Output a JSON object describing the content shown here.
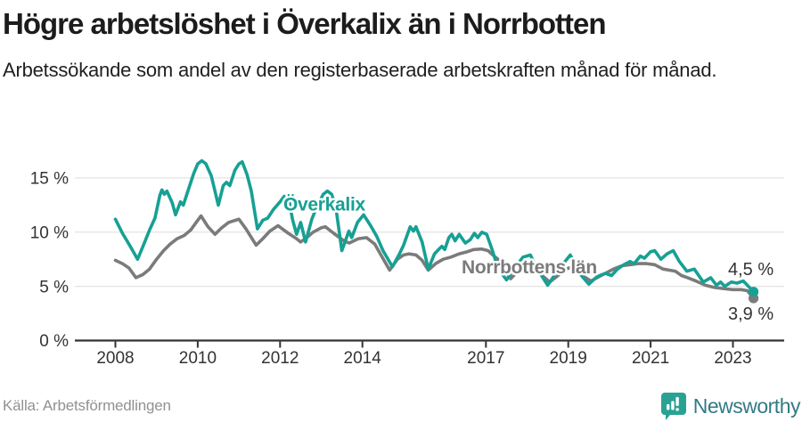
{
  "header": {
    "title": "Högre arbetslöshet i Överkalix än i Norrbotten",
    "subtitle": "Arbetssökande som andel av den registerbaserade arbetskraften månad för månad."
  },
  "chart_data": {
    "type": "line",
    "title": "",
    "xlabel": "",
    "ylabel": "%",
    "x_axis": {
      "range": [
        2007.05,
        2024.25
      ],
      "ticks": [
        2008,
        2010,
        2012,
        2014,
        2017,
        2019,
        2021,
        2023
      ],
      "labels": [
        "2008",
        "2010",
        "2012",
        "2014",
        "2017",
        "2019",
        "2021",
        "2023"
      ]
    },
    "y_axis": {
      "range": [
        0,
        18.3
      ],
      "ticks": [
        0,
        5,
        10,
        15
      ],
      "labels": [
        "0 %",
        "5 %",
        "10 %",
        "15 %"
      ]
    },
    "grid": "horizontal",
    "legend": "inline-labels",
    "series": [
      {
        "name": "Överkalix",
        "color": "#17a094",
        "end_value": 4.5,
        "end_label": "4,5 %",
        "points": [
          [
            2008.0,
            11.2
          ],
          [
            2008.17,
            9.9
          ],
          [
            2008.33,
            8.9
          ],
          [
            2008.42,
            8.3
          ],
          [
            2008.54,
            7.5
          ],
          [
            2008.67,
            8.7
          ],
          [
            2008.83,
            10.2
          ],
          [
            2008.96,
            11.3
          ],
          [
            2009.08,
            13.4
          ],
          [
            2009.13,
            13.9
          ],
          [
            2009.19,
            13.5
          ],
          [
            2009.25,
            13.8
          ],
          [
            2009.38,
            12.7
          ],
          [
            2009.46,
            11.6
          ],
          [
            2009.58,
            12.8
          ],
          [
            2009.65,
            12.5
          ],
          [
            2009.78,
            14.0
          ],
          [
            2009.9,
            15.4
          ],
          [
            2010.0,
            16.3
          ],
          [
            2010.1,
            16.6
          ],
          [
            2010.2,
            16.3
          ],
          [
            2010.33,
            15.2
          ],
          [
            2010.5,
            12.5
          ],
          [
            2010.62,
            14.3
          ],
          [
            2010.7,
            14.6
          ],
          [
            2010.78,
            14.3
          ],
          [
            2010.9,
            15.7
          ],
          [
            2011.0,
            16.3
          ],
          [
            2011.08,
            16.5
          ],
          [
            2011.2,
            15.3
          ],
          [
            2011.3,
            13.8
          ],
          [
            2011.45,
            10.3
          ],
          [
            2011.58,
            11.1
          ],
          [
            2011.7,
            11.3
          ],
          [
            2011.84,
            12.1
          ],
          [
            2012.0,
            12.8
          ],
          [
            2012.1,
            13.3
          ],
          [
            2012.2,
            13.3
          ],
          [
            2012.3,
            11.2
          ],
          [
            2012.4,
            9.8
          ],
          [
            2012.5,
            10.9
          ],
          [
            2012.62,
            9.1
          ],
          [
            2012.77,
            11.2
          ],
          [
            2012.9,
            12.4
          ],
          [
            2013.05,
            13.5
          ],
          [
            2013.15,
            13.8
          ],
          [
            2013.25,
            13.5
          ],
          [
            2013.35,
            12.4
          ],
          [
            2013.5,
            8.3
          ],
          [
            2013.67,
            10.1
          ],
          [
            2013.74,
            9.5
          ],
          [
            2013.88,
            10.9
          ],
          [
            2014.03,
            11.6
          ],
          [
            2014.2,
            10.6
          ],
          [
            2014.35,
            9.6
          ],
          [
            2014.5,
            8.3
          ],
          [
            2014.73,
            6.8
          ],
          [
            2014.9,
            8.0
          ],
          [
            2015.0,
            8.8
          ],
          [
            2015.16,
            10.5
          ],
          [
            2015.24,
            10.1
          ],
          [
            2015.3,
            10.5
          ],
          [
            2015.45,
            9.1
          ],
          [
            2015.6,
            6.6
          ],
          [
            2015.75,
            8.0
          ],
          [
            2015.85,
            8.4
          ],
          [
            2015.93,
            8.7
          ],
          [
            2016.0,
            8.4
          ],
          [
            2016.1,
            9.5
          ],
          [
            2016.17,
            9.8
          ],
          [
            2016.25,
            9.2
          ],
          [
            2016.35,
            9.8
          ],
          [
            2016.5,
            9.0
          ],
          [
            2016.62,
            9.3
          ],
          [
            2016.72,
            9.9
          ],
          [
            2016.8,
            9.5
          ],
          [
            2016.9,
            10.0
          ],
          [
            2017.02,
            9.8
          ],
          [
            2017.15,
            8.4
          ],
          [
            2017.3,
            6.6
          ],
          [
            2017.5,
            5.6
          ],
          [
            2017.7,
            6.7
          ],
          [
            2017.9,
            7.7
          ],
          [
            2018.08,
            7.9
          ],
          [
            2018.25,
            6.6
          ],
          [
            2018.5,
            5.1
          ],
          [
            2018.7,
            6.2
          ],
          [
            2018.9,
            7.2
          ],
          [
            2019.05,
            7.9
          ],
          [
            2019.25,
            6.3
          ],
          [
            2019.5,
            5.2
          ],
          [
            2019.7,
            5.9
          ],
          [
            2019.9,
            6.2
          ],
          [
            2020.05,
            6.0
          ],
          [
            2020.2,
            6.6
          ],
          [
            2020.35,
            7.0
          ],
          [
            2020.5,
            7.3
          ],
          [
            2020.6,
            7.1
          ],
          [
            2020.75,
            7.8
          ],
          [
            2020.85,
            7.6
          ],
          [
            2021.0,
            8.2
          ],
          [
            2021.1,
            8.3
          ],
          [
            2021.25,
            7.5
          ],
          [
            2021.4,
            8.0
          ],
          [
            2021.55,
            8.3
          ],
          [
            2021.7,
            7.3
          ],
          [
            2021.88,
            6.4
          ],
          [
            2022.06,
            6.6
          ],
          [
            2022.28,
            5.4
          ],
          [
            2022.46,
            5.8
          ],
          [
            2022.6,
            5.1
          ],
          [
            2022.7,
            5.4
          ],
          [
            2022.8,
            5.0
          ],
          [
            2022.96,
            5.4
          ],
          [
            2023.1,
            5.3
          ],
          [
            2023.25,
            5.5
          ],
          [
            2023.35,
            5.1
          ],
          [
            2023.5,
            4.5
          ]
        ]
      },
      {
        "name": "Norrbottens län",
        "color": "#7b7b7b",
        "end_value": 3.9,
        "end_label": "3,9 %",
        "points": [
          [
            2008.0,
            7.4
          ],
          [
            2008.17,
            7.1
          ],
          [
            2008.33,
            6.7
          ],
          [
            2008.5,
            5.8
          ],
          [
            2008.67,
            6.1
          ],
          [
            2008.83,
            6.6
          ],
          [
            2009.0,
            7.5
          ],
          [
            2009.17,
            8.3
          ],
          [
            2009.33,
            8.9
          ],
          [
            2009.5,
            9.4
          ],
          [
            2009.67,
            9.7
          ],
          [
            2009.83,
            10.2
          ],
          [
            2010.0,
            11.1
          ],
          [
            2010.08,
            11.5
          ],
          [
            2010.25,
            10.5
          ],
          [
            2010.42,
            9.8
          ],
          [
            2010.58,
            10.4
          ],
          [
            2010.75,
            10.9
          ],
          [
            2010.92,
            11.1
          ],
          [
            2011.0,
            11.2
          ],
          [
            2011.17,
            10.3
          ],
          [
            2011.42,
            8.8
          ],
          [
            2011.58,
            9.4
          ],
          [
            2011.75,
            10.1
          ],
          [
            2011.95,
            10.6
          ],
          [
            2012.2,
            9.9
          ],
          [
            2012.4,
            9.4
          ],
          [
            2012.5,
            9.1
          ],
          [
            2012.65,
            9.5
          ],
          [
            2012.8,
            10.0
          ],
          [
            2013.0,
            10.4
          ],
          [
            2013.1,
            10.5
          ],
          [
            2013.3,
            9.9
          ],
          [
            2013.55,
            9.2
          ],
          [
            2013.68,
            9.0
          ],
          [
            2013.9,
            9.4
          ],
          [
            2014.1,
            9.5
          ],
          [
            2014.3,
            8.9
          ],
          [
            2014.45,
            7.9
          ],
          [
            2014.66,
            6.5
          ],
          [
            2014.85,
            7.5
          ],
          [
            2015.0,
            7.9
          ],
          [
            2015.13,
            8.0
          ],
          [
            2015.3,
            7.9
          ],
          [
            2015.45,
            7.4
          ],
          [
            2015.6,
            6.5
          ],
          [
            2015.78,
            7.1
          ],
          [
            2015.96,
            7.5
          ],
          [
            2016.15,
            7.7
          ],
          [
            2016.35,
            8.0
          ],
          [
            2016.55,
            8.2
          ],
          [
            2016.7,
            8.4
          ],
          [
            2016.9,
            8.45
          ],
          [
            2017.05,
            8.3
          ],
          [
            2017.2,
            7.8
          ],
          [
            2017.36,
            7.3
          ],
          [
            2017.5,
            6.3
          ],
          [
            2017.6,
            5.7
          ],
          [
            2017.75,
            6.3
          ],
          [
            2017.95,
            6.8
          ],
          [
            2018.1,
            6.9
          ],
          [
            2018.3,
            6.2
          ],
          [
            2018.55,
            5.4
          ],
          [
            2018.75,
            6.0
          ],
          [
            2018.95,
            6.6
          ],
          [
            2019.1,
            6.8
          ],
          [
            2019.3,
            6.1
          ],
          [
            2019.55,
            5.5
          ],
          [
            2019.75,
            5.9
          ],
          [
            2019.95,
            6.3
          ],
          [
            2020.1,
            6.6
          ],
          [
            2020.3,
            6.9
          ],
          [
            2020.5,
            7.0
          ],
          [
            2020.7,
            7.1
          ],
          [
            2020.9,
            7.1
          ],
          [
            2021.1,
            7.0
          ],
          [
            2021.3,
            6.6
          ],
          [
            2021.45,
            6.5
          ],
          [
            2021.6,
            6.4
          ],
          [
            2021.75,
            6.0
          ],
          [
            2021.9,
            5.8
          ],
          [
            2022.1,
            5.5
          ],
          [
            2022.33,
            5.1
          ],
          [
            2022.55,
            4.9
          ],
          [
            2022.76,
            4.8
          ],
          [
            2023.0,
            4.7
          ],
          [
            2023.2,
            4.7
          ],
          [
            2023.35,
            4.6
          ],
          [
            2023.5,
            3.9
          ]
        ]
      }
    ]
  },
  "footer": {
    "source": "Källa: Arbetsförmedlingen",
    "brand": "Newsworthy",
    "brand_color": "#337a87",
    "brand_icon_color": "#29a294"
  }
}
